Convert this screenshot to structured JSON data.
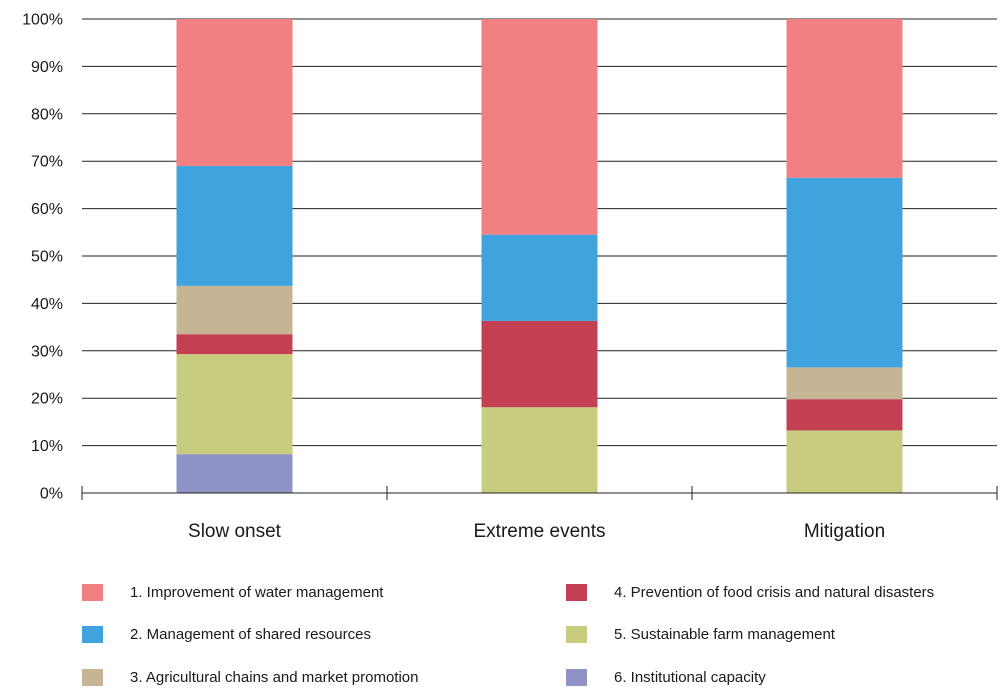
{
  "chart_data": {
    "type": "bar",
    "stacked": true,
    "categories": [
      "Slow onset",
      "Extreme events",
      "Mitigation"
    ],
    "y_ticks": [
      "0%",
      "10%",
      "20%",
      "30%",
      "40%",
      "50%",
      "60%",
      "70%",
      "80%",
      "90%",
      "100%"
    ],
    "ylim": [
      0,
      100
    ],
    "grid": true,
    "legend_placement": "bottom",
    "series": [
      {
        "name": "1. Improvement of water management",
        "color": "#f28083",
        "values": [
          31,
          45.5,
          33.5
        ]
      },
      {
        "name": "2. Management of shared resources",
        "color": "#40a3dd",
        "values": [
          25.3,
          18.2,
          40
        ]
      },
      {
        "name": "3. Agricultural chains and market promotion",
        "color": "#c5b594",
        "values": [
          10.2,
          0,
          6.7
        ]
      },
      {
        "name": "4. Prevention of food crisis and natural disasters",
        "color": "#c34052",
        "values": [
          4.2,
          18.2,
          6.6
        ]
      },
      {
        "name": "5. Sustainable farm management",
        "color": "#c7cc7e",
        "values": [
          21.1,
          18.1,
          13.2
        ]
      },
      {
        "name": "6. Institutional capacity",
        "color": "#9093c6",
        "values": [
          8.2,
          0,
          0
        ]
      }
    ]
  }
}
